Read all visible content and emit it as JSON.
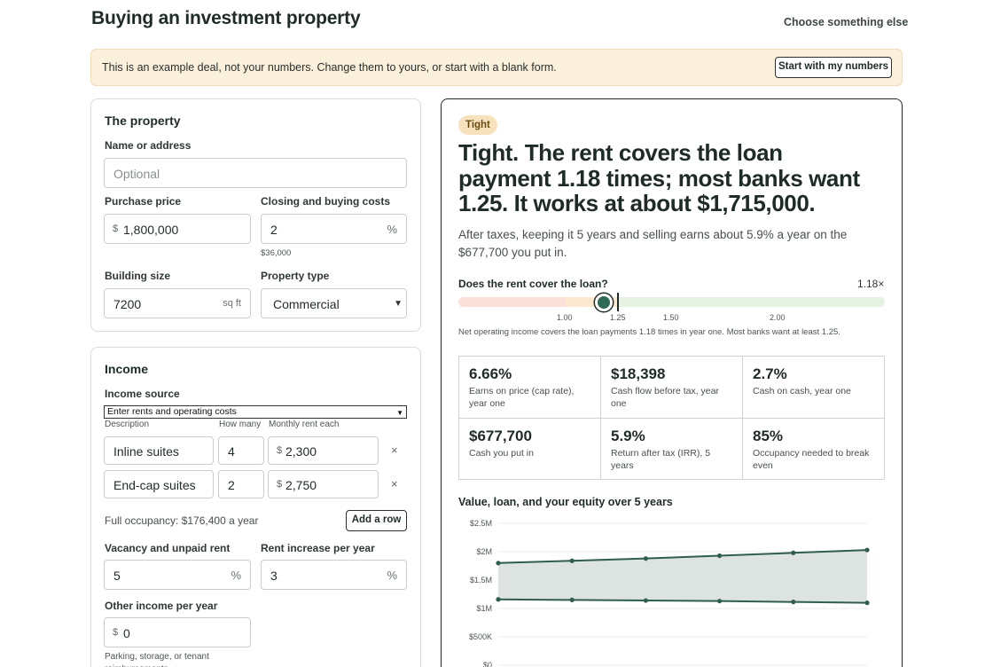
{
  "header": {
    "title": "Buying an investment property",
    "choose_link": "Choose something else"
  },
  "banner": {
    "text": "This is an example deal, not your numbers. Change them to yours, or start with a blank form.",
    "button": "Start with my numbers"
  },
  "property": {
    "heading": "The property",
    "name_label": "Name or address",
    "name_placeholder": "Optional",
    "price_label": "Purchase price",
    "price_prefix": "$",
    "price_value": "1,800,000",
    "closing_label": "Closing and buying costs",
    "closing_value": "2",
    "closing_suffix": "%",
    "closing_hint": "$36,000",
    "size_label": "Building size",
    "size_value": "7200",
    "size_suffix": "sq ft",
    "type_label": "Property type",
    "type_value": "Commercial"
  },
  "income": {
    "heading": "Income",
    "source_label": "Income source",
    "source_value": "Enter rents and operating costs",
    "col_description": "Description",
    "col_how_many": "How many",
    "col_monthly_rent": "Monthly rent each",
    "rows": [
      {
        "description": "Inline suites",
        "count": "4",
        "prefix": "$",
        "rent": "2,300",
        "remove": "×"
      },
      {
        "description": "End-cap suites",
        "count": "2",
        "prefix": "$",
        "rent": "2,750",
        "remove": "×"
      }
    ],
    "full_occupancy": "Full occupancy: $176,400 a year",
    "add_row": "Add a row",
    "vacancy_label": "Vacancy and unpaid rent",
    "vacancy_value": "5",
    "vacancy_suffix": "%",
    "rent_increase_label": "Rent increase per year",
    "rent_increase_value": "3",
    "rent_increase_suffix": "%",
    "other_income_label": "Other income per year",
    "other_income_prefix": "$",
    "other_income_value": "0",
    "other_income_hint": "Parking, storage, or tenant reimbursements"
  },
  "results": {
    "badge": "Tight",
    "headline": "Tight. The rent covers the loan payment 1.18 times; most banks want 1.25. It works at about $1,715,000.",
    "after_tax": "After taxes, keeping it 5 years and selling earns about 5.9% a year on the $677,700 you put in.",
    "rent_question": "Does the rent cover the loan?",
    "ratio_label": "1.18×",
    "ratio_value": 1.18,
    "ticks": [
      "1.00",
      "1.25",
      "1.50",
      "2.00"
    ],
    "gauge_note": "Net operating income covers the loan payments 1.18 times in year one. Most banks want at least 1.25.",
    "metrics": [
      {
        "value": "6.66%",
        "label": "Earns on price (cap rate), year one"
      },
      {
        "value": "$18,398",
        "label": "Cash flow before tax, year one"
      },
      {
        "value": "2.7%",
        "label": "Cash on cash, year one"
      },
      {
        "value": "$677,700",
        "label": "Cash you put in"
      },
      {
        "value": "5.9%",
        "label": "Return after tax (IRR), 5 years"
      },
      {
        "value": "85%",
        "label": "Occupancy needed to break even"
      }
    ],
    "chart_title": "Value, loan, and your equity over 5 years"
  },
  "colors": {
    "accent": "#2f6a55",
    "badge_bg": "#f7e2bd",
    "banner_bg": "#fbf0dc"
  },
  "chart_data": {
    "type": "area",
    "title": "Value, loan, and your equity over 5 years",
    "x": [
      0,
      1,
      2,
      3,
      4,
      5
    ],
    "y_ticks": [
      "$2.5M",
      "$2M",
      "$1.5M",
      "$1M",
      "$500K",
      "$0"
    ],
    "ylim": [
      0,
      2500000
    ],
    "series": [
      {
        "values": [
          1800000,
          1840000,
          1880000,
          1930000,
          1980000,
          2030000
        ]
      },
      {
        "values": [
          1160000,
          1150000,
          1140000,
          1130000,
          1115000,
          1100000
        ]
      }
    ]
  }
}
